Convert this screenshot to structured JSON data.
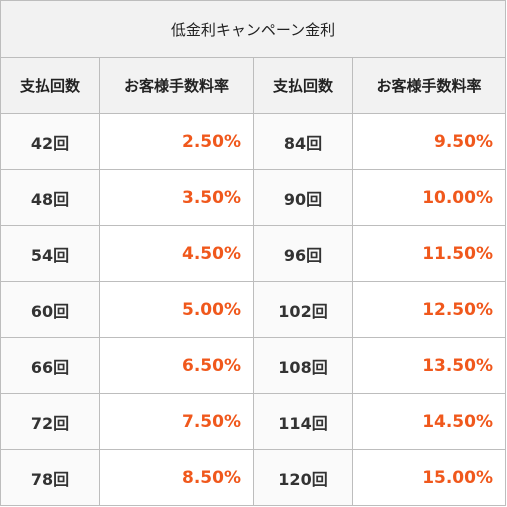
{
  "table": {
    "title": "低金利キャンペーン金利",
    "headers": {
      "count_label": "支払回数",
      "rate_label": "お客様手数料率"
    },
    "rows": [
      {
        "left_count": "42回",
        "left_rate": "2.50%",
        "right_count": "84回",
        "right_rate": "9.50%"
      },
      {
        "left_count": "48回",
        "left_rate": "3.50%",
        "right_count": "90回",
        "right_rate": "10.00%"
      },
      {
        "left_count": "54回",
        "left_rate": "4.50%",
        "right_count": "96回",
        "right_rate": "11.50%"
      },
      {
        "left_count": "60回",
        "left_rate": "5.00%",
        "right_count": "102回",
        "right_rate": "12.50%"
      },
      {
        "left_count": "66回",
        "left_rate": "6.50%",
        "right_count": "108回",
        "right_rate": "13.50%"
      },
      {
        "left_count": "72回",
        "left_rate": "7.50%",
        "right_count": "114回",
        "right_rate": "14.50%"
      },
      {
        "left_count": "78回",
        "left_rate": "8.50%",
        "right_count": "120回",
        "right_rate": "15.00%"
      }
    ]
  },
  "colors": {
    "accent_rate": "#f0581c",
    "header_bg": "#f2f2f2",
    "border": "#bdbdbd"
  }
}
